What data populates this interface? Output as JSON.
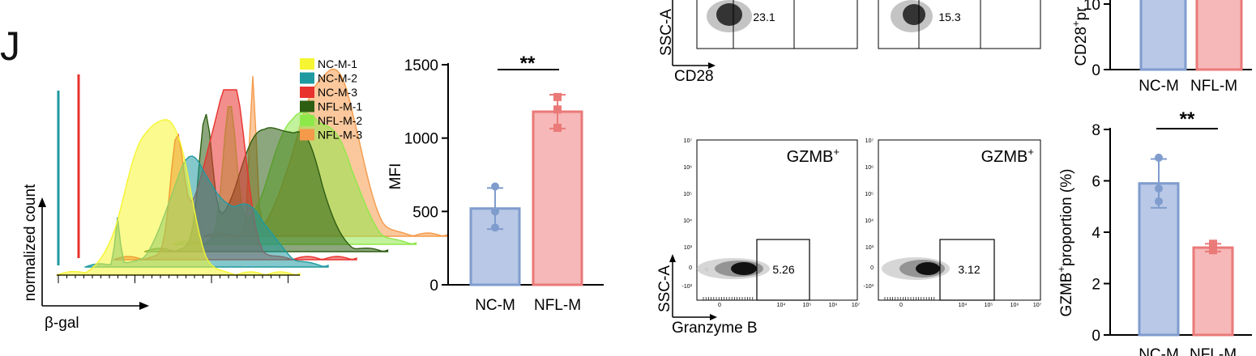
{
  "figure": {
    "panel_letter": "J"
  },
  "chart_data": [
    {
      "type": "area",
      "subtype": "stacked-offset histograms (3D waterfall)",
      "xlabel": "β-gal",
      "ylabel": "normalized count",
      "legend_position": "top-right",
      "series": [
        {
          "name": "NC-M-1",
          "color": "#f5f532"
        },
        {
          "name": "NC-M-2",
          "color": "#1f9aa0"
        },
        {
          "name": "NC-M-3",
          "color": "#e8322e"
        },
        {
          "name": "NFL-M-1",
          "color": "#2e5e12"
        },
        {
          "name": "NFL-M-2",
          "color": "#8fe84a"
        },
        {
          "name": "NFL-M-3",
          "color": "#f59a4a"
        }
      ]
    },
    {
      "type": "bar",
      "categories": [
        "NC-M",
        "NFL-M"
      ],
      "values": [
        520,
        1180
      ],
      "errors": [
        140,
        115
      ],
      "points": [
        [
          670,
          500,
          390
        ],
        [
          1280,
          1195,
          1070
        ]
      ],
      "colors": [
        "#b8c8e6",
        "#f6b8b8"
      ],
      "edge_colors": [
        "#7f9ccd",
        "#ea7a78"
      ],
      "ylabel": "MFI",
      "ylim": [
        0,
        1500
      ],
      "yticks": [
        0,
        500,
        1000,
        1500
      ],
      "significance": "**"
    },
    {
      "type": "scatter",
      "subtype": "flow cytometry density plots",
      "top_row": {
        "xlabel": "CD28",
        "ylabel": "SSC-A",
        "values": [
          "23.1",
          "15.3"
        ]
      },
      "bottom_row": {
        "xlabel": "Granzyme B",
        "ylabel": "SSC-A",
        "gate_label": "GZMB",
        "gate_superscript": "+",
        "values": [
          "5.26",
          "3.12"
        ]
      },
      "tick_labels": {
        "y": [
          "10⁷",
          "10⁶",
          "10⁵",
          "10⁴",
          "10³",
          "0",
          "-10³"
        ],
        "x": [
          "0",
          "10⁴",
          "10⁵",
          "10⁶",
          "10⁷"
        ]
      }
    },
    {
      "type": "bar",
      "ylabel_prefix": "CD28",
      "ylabel_sup": "+",
      "ylabel_suffix": "pr",
      "categories": [
        "NC-M",
        "NFL-M"
      ],
      "yticks_visible": [
        0,
        10
      ],
      "colors": [
        "#b8c8e6",
        "#f6b8b8"
      ],
      "edge_colors": [
        "#7f9ccd",
        "#ea7a78"
      ]
    },
    {
      "type": "bar",
      "categories": [
        "NC-M",
        "NFL-M"
      ],
      "values": [
        5.9,
        3.4
      ],
      "errors": [
        0.95,
        0.15
      ],
      "points": [
        [
          6.9,
          5.7,
          5.2
        ],
        [
          3.55,
          3.4,
          3.3
        ]
      ],
      "colors": [
        "#b8c8e6",
        "#f6b8b8"
      ],
      "edge_colors": [
        "#7f9ccd",
        "#ea7a78"
      ],
      "ylabel_prefix": "GZMB",
      "ylabel_sup": "+",
      "ylabel_suffix": "proportion (%)",
      "ylim": [
        0,
        8
      ],
      "yticks": [
        0,
        2,
        4,
        6,
        8
      ],
      "significance": "**"
    }
  ]
}
